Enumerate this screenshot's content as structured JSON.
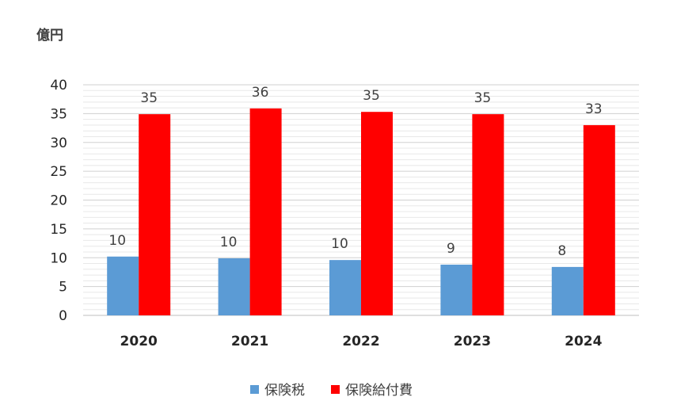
{
  "chart_data": {
    "type": "bar",
    "unit_label": "億円",
    "categories": [
      "2020",
      "2021",
      "2022",
      "2023",
      "2024"
    ],
    "series": [
      {
        "name": "保険税",
        "color": "#5B9BD5",
        "values": [
          10.2,
          9.9,
          9.6,
          8.8,
          8.4
        ],
        "labels": [
          "10",
          "10",
          "10",
          "9",
          "8"
        ]
      },
      {
        "name": "保険給付費",
        "color": "#FF0000",
        "values": [
          34.9,
          35.9,
          35.3,
          34.9,
          33.0
        ],
        "labels": [
          "35",
          "36",
          "35",
          "35",
          "33"
        ]
      }
    ],
    "ylim": [
      0,
      40
    ],
    "yticks": [
      0,
      5,
      10,
      15,
      20,
      25,
      30,
      35,
      40
    ],
    "grid": true,
    "legend_position": "bottom"
  }
}
